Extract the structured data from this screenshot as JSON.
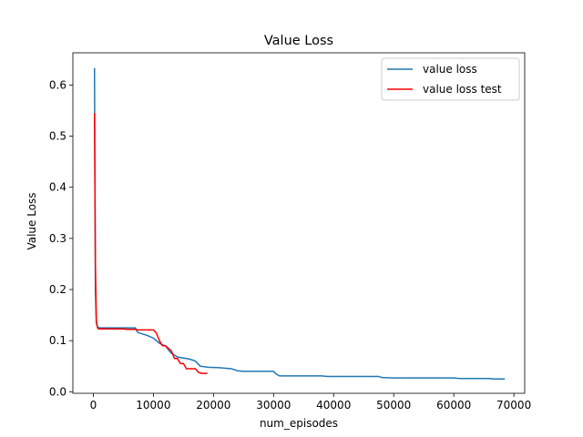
{
  "chart_data": {
    "type": "line",
    "title": "Value Loss",
    "xlabel": "num_episodes",
    "ylabel": "Value Loss",
    "xlim": [
      -3400,
      71800
    ],
    "ylim": [
      -0.003,
      0.663
    ],
    "xticks": [
      0,
      10000,
      20000,
      30000,
      40000,
      50000,
      60000,
      70000
    ],
    "yticks": [
      0.0,
      0.1,
      0.2,
      0.3,
      0.4,
      0.5,
      0.6
    ],
    "xtick_labels": [
      "0",
      "10000",
      "20000",
      "30000",
      "40000",
      "50000",
      "60000",
      "70000"
    ],
    "ytick_labels": [
      "0.0",
      "0.1",
      "0.2",
      "0.3",
      "0.4",
      "0.5",
      "0.6"
    ],
    "grid": false,
    "legend_position": "top-right",
    "series": [
      {
        "name": "value loss",
        "color": "#1f77b4",
        "x": [
          200,
          350,
          500,
          700,
          1000,
          2000,
          4000,
          7000,
          7200,
          7400,
          8500,
          9000,
          10000,
          10500,
          11000,
          11500,
          12000,
          12500,
          13000,
          13500,
          14000,
          15000,
          16000,
          16500,
          17000,
          17400,
          17800,
          18500,
          19000,
          21000,
          22000,
          23000,
          24000,
          25000,
          26000,
          28000,
          30000,
          30400,
          31000,
          33000,
          35000,
          38000,
          39000,
          42000,
          45000,
          47500,
          48000,
          50000,
          55000,
          60000,
          61000,
          63000,
          66000,
          66500,
          67000,
          68500
        ],
        "y": [
          0.633,
          0.2,
          0.135,
          0.127,
          0.125,
          0.125,
          0.125,
          0.125,
          0.12,
          0.116,
          0.112,
          0.11,
          0.105,
          0.1,
          0.095,
          0.092,
          0.09,
          0.082,
          0.075,
          0.072,
          0.068,
          0.066,
          0.064,
          0.062,
          0.06,
          0.055,
          0.05,
          0.049,
          0.048,
          0.047,
          0.046,
          0.045,
          0.041,
          0.04,
          0.04,
          0.04,
          0.04,
          0.035,
          0.031,
          0.031,
          0.031,
          0.031,
          0.03,
          0.03,
          0.03,
          0.03,
          0.028,
          0.027,
          0.027,
          0.027,
          0.026,
          0.026,
          0.026,
          0.025,
          0.025,
          0.025
        ]
      },
      {
        "name": "value loss test",
        "color": "#ff0000",
        "x": [
          200,
          350,
          500,
          700,
          900,
          2000,
          5000,
          5500,
          7000,
          7500,
          10000,
          10500,
          11000,
          11500,
          12000,
          12500,
          13000,
          13500,
          14000,
          14500,
          15000,
          15500,
          16500,
          17000,
          17500,
          18000,
          19000
        ],
        "y": [
          0.545,
          0.25,
          0.14,
          0.125,
          0.123,
          0.123,
          0.123,
          0.122,
          0.122,
          0.121,
          0.121,
          0.115,
          0.1,
          0.09,
          0.09,
          0.085,
          0.08,
          0.065,
          0.065,
          0.055,
          0.055,
          0.045,
          0.045,
          0.045,
          0.038,
          0.036,
          0.036
        ]
      }
    ]
  }
}
